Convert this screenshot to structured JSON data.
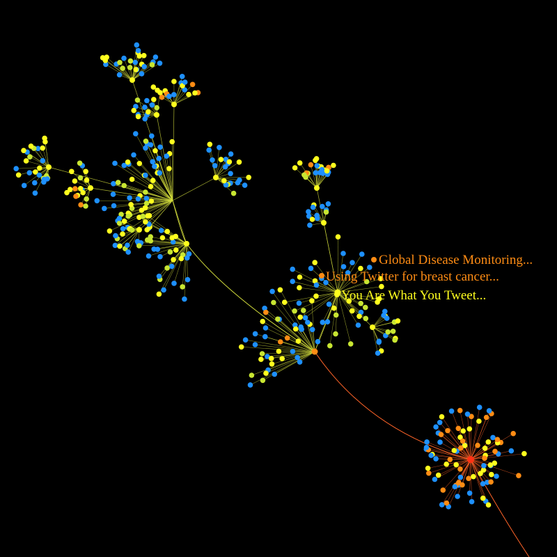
{
  "colors": {
    "background": "#000000",
    "node_blue": "#1e90ff",
    "node_yellow": "#ffff1e",
    "node_yellow_green": "#c8e632",
    "node_orange": "#ff8c14",
    "node_red": "#ff3214",
    "edge_yellow": "#d2dc3c",
    "edge_orange": "#ff6428"
  },
  "labels": [
    {
      "text": "Global Disease Monitoring...",
      "color": "#ff8c14"
    },
    {
      "text": "Using Twitter for breast cancer...",
      "color": "#ff8c14"
    },
    {
      "text": "You Are What You Tweet...",
      "color": "#ffff1e"
    }
  ]
}
